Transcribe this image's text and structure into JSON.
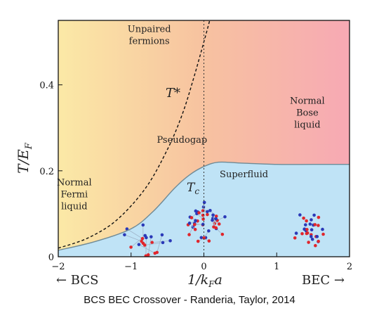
{
  "chart_data": {
    "type": "area",
    "xlabel_main": "1/k",
    "xlabel_sub": "F",
    "xlabel_tail": "a",
    "ylabel_main": "T/E",
    "ylabel_sub": "F",
    "xlim": [
      -2,
      2
    ],
    "ylim": [
      0,
      0.55
    ],
    "xticks": [
      -2,
      -1,
      0,
      1,
      2
    ],
    "xtick_labels": [
      "−2",
      "−1",
      "0",
      "1",
      "2"
    ],
    "yticks": [
      0,
      0.2,
      0.4
    ],
    "ytick_labels": [
      "0",
      "0.2",
      "0.4"
    ],
    "axis_left_label": "← BCS",
    "axis_right_label": "BEC →",
    "unitarity_line_x": 0,
    "curves": {
      "T_star": {
        "label": "T*",
        "style": "dashed",
        "x": [
          -2.0,
          -1.6,
          -1.2,
          -0.8,
          -0.5,
          -0.3,
          -0.15,
          0.0,
          0.08
        ],
        "y": [
          0.02,
          0.043,
          0.085,
          0.16,
          0.25,
          0.33,
          0.41,
          0.5,
          0.55
        ]
      },
      "T_c": {
        "label": "Tc",
        "style": "solid",
        "x": [
          -2.0,
          -1.5,
          -1.0,
          -0.7,
          -0.4,
          -0.2,
          0.0,
          0.2,
          0.5,
          1.0,
          1.5,
          2.0
        ],
        "y": [
          0.015,
          0.035,
          0.065,
          0.105,
          0.16,
          0.19,
          0.21,
          0.22,
          0.218,
          0.215,
          0.215,
          0.215
        ]
      }
    },
    "regions": [
      {
        "label": "Unpaired\nfermions",
        "x": -0.75,
        "y": 0.51
      },
      {
        "label": "Normal\nFermi\nliquid",
        "x": -1.78,
        "y": 0.14
      },
      {
        "label": "Pseudogap",
        "x": -0.3,
        "y": 0.265
      },
      {
        "label": "Normal\nBose\nliquid",
        "x": 1.42,
        "y": 0.33
      },
      {
        "label": "Superfluid",
        "x": 0.55,
        "y": 0.185
      }
    ],
    "background_colors": {
      "bcs": "#fbe9a6",
      "bec": "#f7a9b4",
      "superfluid": "#bfe3f6",
      "curve": "#6f8a96"
    },
    "pair_colors": {
      "up": "#2a39b8",
      "down": "#e0262c"
    }
  },
  "caption": "BCS BEC Crossover - Randeria, Taylor, 2014"
}
